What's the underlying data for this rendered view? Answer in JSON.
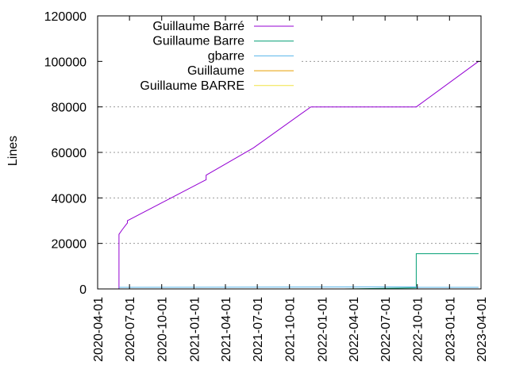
{
  "chart_data": {
    "type": "line",
    "ylabel": "Lines",
    "xlabel": "",
    "title": "",
    "ylim": [
      0,
      120000
    ],
    "xlim": [
      "2020-04-01",
      "2023-04-01"
    ],
    "yticks": [
      0,
      20000,
      40000,
      60000,
      80000,
      100000,
      120000
    ],
    "xticks": [
      "2020-04-01",
      "2020-07-01",
      "2020-10-01",
      "2021-01-01",
      "2021-04-01",
      "2021-07-01",
      "2021-10-01",
      "2022-01-01",
      "2022-04-01",
      "2022-07-01",
      "2022-10-01",
      "2023-01-01",
      "2023-04-01"
    ],
    "grid": "dotted horizontal lines at y ticks",
    "legend_position": "top-left",
    "series": [
      {
        "name": "Guillaume Barré",
        "color": "#9400d3",
        "points": [
          [
            "2020-06-01",
            0
          ],
          [
            "2020-06-01",
            24000
          ],
          [
            "2020-06-10",
            26000
          ],
          [
            "2020-06-20",
            28000
          ],
          [
            "2020-06-25",
            29000
          ],
          [
            "2020-06-25",
            30000
          ],
          [
            "2021-02-05",
            48000
          ],
          [
            "2021-02-05",
            50000
          ],
          [
            "2021-06-20",
            62000
          ],
          [
            "2021-12-01",
            80000
          ],
          [
            "2022-09-28",
            80000
          ],
          [
            "2023-03-25",
            100000
          ]
        ]
      },
      {
        "name": "Guillaume Barre",
        "color": "#009e73",
        "points": [
          [
            "2022-03-05",
            0
          ],
          [
            "2022-09-28",
            500
          ],
          [
            "2022-09-28",
            15500
          ],
          [
            "2023-03-25",
            15500
          ]
        ]
      },
      {
        "name": "gbarre",
        "color": "#56b4e9",
        "points": [
          [
            "2020-06-01",
            700
          ],
          [
            "2022-09-28",
            900
          ],
          [
            "2022-09-28",
            700
          ],
          [
            "2023-03-25",
            700
          ]
        ]
      },
      {
        "name": "Guillaume",
        "color": "#e69f00",
        "points": []
      },
      {
        "name": "Guillaume BARRE",
        "color": "#f0e442",
        "points": []
      }
    ]
  }
}
